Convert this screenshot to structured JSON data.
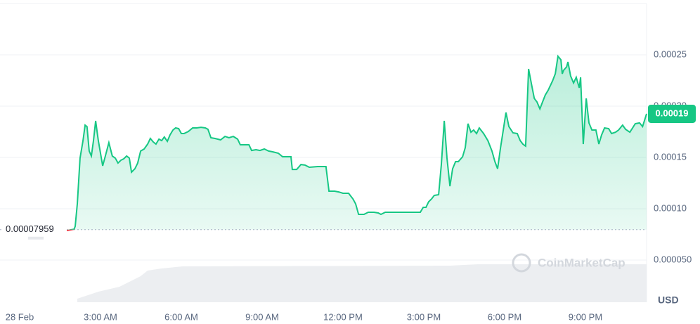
{
  "chart_data": {
    "type": "line",
    "x": [
      1.75,
      2.02,
      2.06,
      2.14,
      2.24,
      2.35,
      2.43,
      2.5,
      2.58,
      2.66,
      2.74,
      2.82,
      2.92,
      3.08,
      3.18,
      3.31,
      3.44,
      3.55,
      3.65,
      3.76,
      3.86,
      3.97,
      4.07,
      4.15,
      4.28,
      4.38,
      4.49,
      4.62,
      4.75,
      4.85,
      4.96,
      5.06,
      5.17,
      5.27,
      5.37,
      5.48,
      5.58,
      5.69,
      5.79,
      5.9,
      6.0,
      6.1,
      6.26,
      6.42,
      6.57,
      6.73,
      6.89,
      6.99,
      7.1,
      7.25,
      7.46,
      7.62,
      7.77,
      7.93,
      8.09,
      8.19,
      8.51,
      8.61,
      8.77,
      8.92,
      9.08,
      9.24,
      9.39,
      9.6,
      9.76,
      10.07,
      10.12,
      10.28,
      10.44,
      10.59,
      10.75,
      11.06,
      11.37,
      11.48,
      11.69,
      11.84,
      12.0,
      12.21,
      12.37,
      12.47,
      12.58,
      12.78,
      12.94,
      13.15,
      13.31,
      13.41,
      13.57,
      14.87,
      14.98,
      15.08,
      15.18,
      15.29,
      15.39,
      15.55,
      15.65,
      15.76,
      15.86,
      15.97,
      16.07,
      16.18,
      16.28,
      16.44,
      16.54,
      16.64,
      16.75,
      16.85,
      16.96,
      17.06,
      17.22,
      17.38,
      17.53,
      17.64,
      17.74,
      17.85,
      17.95,
      18.05,
      18.16,
      18.31,
      18.47,
      18.58,
      18.68,
      18.78,
      18.89,
      18.99,
      19.1,
      19.2,
      19.31,
      19.41,
      19.51,
      19.62,
      19.78,
      19.88,
      19.98,
      20.09,
      20.14,
      20.19,
      20.3,
      20.35,
      20.45,
      20.56,
      20.66,
      20.77,
      20.82,
      20.92,
      21.03,
      21.13,
      21.24,
      21.39,
      21.5,
      21.6,
      21.71,
      21.86,
      21.97,
      22.12,
      22.23,
      22.38,
      22.49,
      22.65,
      22.75,
      22.85,
      23.01,
      23.12,
      23.27
    ],
    "series": [
      {
        "color": "#16c784",
        "values": [
          7.88e-05,
          8.01e-05,
          8.29e-05,
          0.0001048,
          0.0001493,
          0.0001664,
          0.0001815,
          0.0001801,
          0.0001562,
          0.0001514,
          0.0001664,
          0.0001856,
          0.0001664,
          0.0001418,
          0.0001514,
          0.0001644,
          0.0001514,
          0.0001493,
          0.0001445,
          0.0001473,
          0.0001486,
          0.0001514,
          0.0001493,
          0.0001356,
          0.000139,
          0.0001445,
          0.0001562,
          0.0001582,
          0.000163,
          0.0001685,
          0.0001651,
          0.000163,
          0.0001678,
          0.0001664,
          0.0001699,
          0.0001657,
          0.0001719,
          0.0001767,
          0.0001788,
          0.0001781,
          0.0001733,
          0.0001733,
          0.0001753,
          0.0001788,
          0.0001788,
          0.0001794,
          0.0001788,
          0.0001774,
          0.0001692,
          0.0001685,
          0.0001671,
          0.0001705,
          0.0001692,
          0.0001705,
          0.0001678,
          0.0001623,
          0.0001623,
          0.0001568,
          0.0001575,
          0.0001568,
          0.0001582,
          0.0001562,
          0.0001555,
          0.0001541,
          0.0001507,
          0.0001507,
          0.0001383,
          0.0001383,
          0.0001431,
          0.0001425,
          0.0001404,
          0.0001411,
          0.0001411,
          0.0001171,
          0.0001171,
          0.0001164,
          0.0001151,
          0.0001151,
          0.0001096,
          0.0001048,
          9.45e-05,
          9.45e-05,
          9.66e-05,
          9.66e-05,
          9.59e-05,
          9.45e-05,
          9.66e-05,
          9.66e-05,
          0.0001014,
          0.0001014,
          0.0001068,
          0.0001096,
          0.000113,
          0.0001137,
          0.0001425,
          0.0001856,
          0.0001493,
          0.0001219,
          0.000139,
          0.0001459,
          0.0001459,
          0.0001507,
          0.0001596,
          0.0001829,
          0.0001746,
          0.0001767,
          0.0001733,
          0.0001788,
          0.0001733,
          0.0001664,
          0.0001562,
          0.0001459,
          0.000139,
          0.0001596,
          0.0001767,
          0.0001938,
          0.0001801,
          0.000174,
          0.0001733,
          0.0001664,
          0.000163,
          0.000161,
          0.0002363,
          0.0002226,
          0.0002075,
          0.0002041,
          0.0001973,
          0.0002041,
          0.0002109,
          0.0002157,
          0.0002246,
          0.0002315,
          0.0002486,
          0.0002452,
          0.0002315,
          0.0002349,
          0.0002383,
          0.0002431,
          0.0002294,
          0.0002226,
          0.0002281,
          0.0002178,
          0.0002281,
          0.000163,
          0.0002075,
          0.0001836,
          0.0001767,
          0.0001767,
          0.000163,
          0.0001719,
          0.0001788,
          0.0001781,
          0.0001733,
          0.0001746,
          0.0001767,
          0.0001815,
          0.0001774,
          0.0001746,
          0.0001788,
          0.0001829,
          0.0001836,
          0.0001801,
          0.0001925
        ]
      }
    ],
    "below_color": "#ea3943",
    "xlim": [
      -0.73,
      23.27
    ],
    "xticks": [
      {
        "value": 0,
        "label": "28 Feb"
      },
      {
        "value": 3,
        "label": "3:00 AM"
      },
      {
        "value": 6,
        "label": "6:00 AM"
      },
      {
        "value": 9,
        "label": "9:00 AM"
      },
      {
        "value": 12,
        "label": "12:00 PM"
      },
      {
        "value": 15,
        "label": "3:00 PM"
      },
      {
        "value": 18,
        "label": "6:00 PM"
      },
      {
        "value": 21,
        "label": "9:00 PM"
      }
    ],
    "ylim": [
      0,
      0.0003
    ],
    "yticks": [
      {
        "value": 5e-05,
        "label": "0.000050"
      },
      {
        "value": 0.0001,
        "label": "0.00010"
      },
      0.00015,
      {
        "value": 0.0002,
        "label": "0.00020"
      },
      0.00025
    ],
    "grid": true,
    "reference_value": 7.959e-05,
    "price_tag": 0.00019,
    "watermark": "CoinMarketCap",
    "currency": "USD"
  }
}
